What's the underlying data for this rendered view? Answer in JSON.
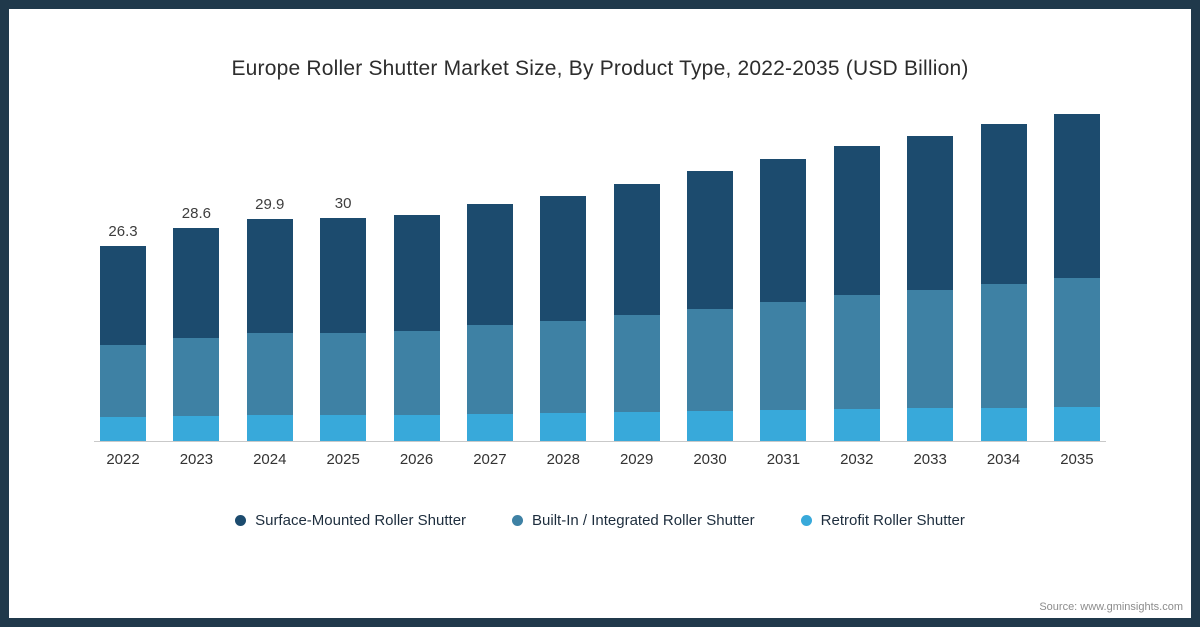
{
  "title": "Europe Roller Shutter Market Size, By Product Type, 2022-2035 (USD Billion)",
  "source": "Source: www.gminsights.com",
  "frame": {
    "border_color": "#20394b",
    "background": "#ffffff"
  },
  "legend": [
    {
      "key": "surface",
      "label": "Surface-Mounted Roller Shutter",
      "color": "#1c4b6e"
    },
    {
      "key": "builtin",
      "label": "Built-In / Integrated Roller Shutter",
      "color": "#3e81a4"
    },
    {
      "key": "retrofit",
      "label": "Retrofit Roller Shutter",
      "color": "#38a9da"
    }
  ],
  "chart_data": {
    "type": "bar",
    "stacked": true,
    "title": "Europe Roller Shutter Market Size, By Product Type, 2022-2035 (USD Billion)",
    "xlabel": "",
    "ylabel": "USD Billion",
    "ylim": [
      0,
      46
    ],
    "grid": false,
    "legend_position": "bottom",
    "categories": [
      "2022",
      "2023",
      "2024",
      "2025",
      "2026",
      "2027",
      "2028",
      "2029",
      "2030",
      "2031",
      "2032",
      "2033",
      "2034",
      "2035"
    ],
    "value_labels": [
      "26.3",
      "28.6",
      "29.9",
      "30",
      "",
      "",
      "",
      "",
      "",
      "",
      "",
      "",
      "",
      ""
    ],
    "totals": [
      26.3,
      28.6,
      29.9,
      30.0,
      30.4,
      31.9,
      33.0,
      34.5,
      36.3,
      38.0,
      39.7,
      41.1,
      42.6,
      44.0
    ],
    "series": [
      {
        "key": "retrofit",
        "name": "Retrofit Roller Shutter",
        "color": "#38a9da",
        "values": [
          3.2,
          3.4,
          3.5,
          3.5,
          3.5,
          3.7,
          3.8,
          3.9,
          4.0,
          4.2,
          4.3,
          4.4,
          4.5,
          4.6
        ]
      },
      {
        "key": "builtin",
        "name": "Built-In / Integrated Roller Shutter",
        "color": "#3e81a4",
        "values": [
          9.7,
          10.5,
          11.0,
          11.1,
          11.3,
          11.9,
          12.4,
          13.0,
          13.8,
          14.5,
          15.3,
          15.9,
          16.6,
          17.3
        ]
      },
      {
        "key": "surface",
        "name": "Surface-Mounted Roller Shutter",
        "color": "#1c4b6e",
        "values": [
          13.4,
          14.7,
          15.4,
          15.4,
          15.6,
          16.3,
          16.8,
          17.6,
          18.5,
          19.3,
          20.1,
          20.8,
          21.5,
          22.1
        ]
      }
    ]
  }
}
